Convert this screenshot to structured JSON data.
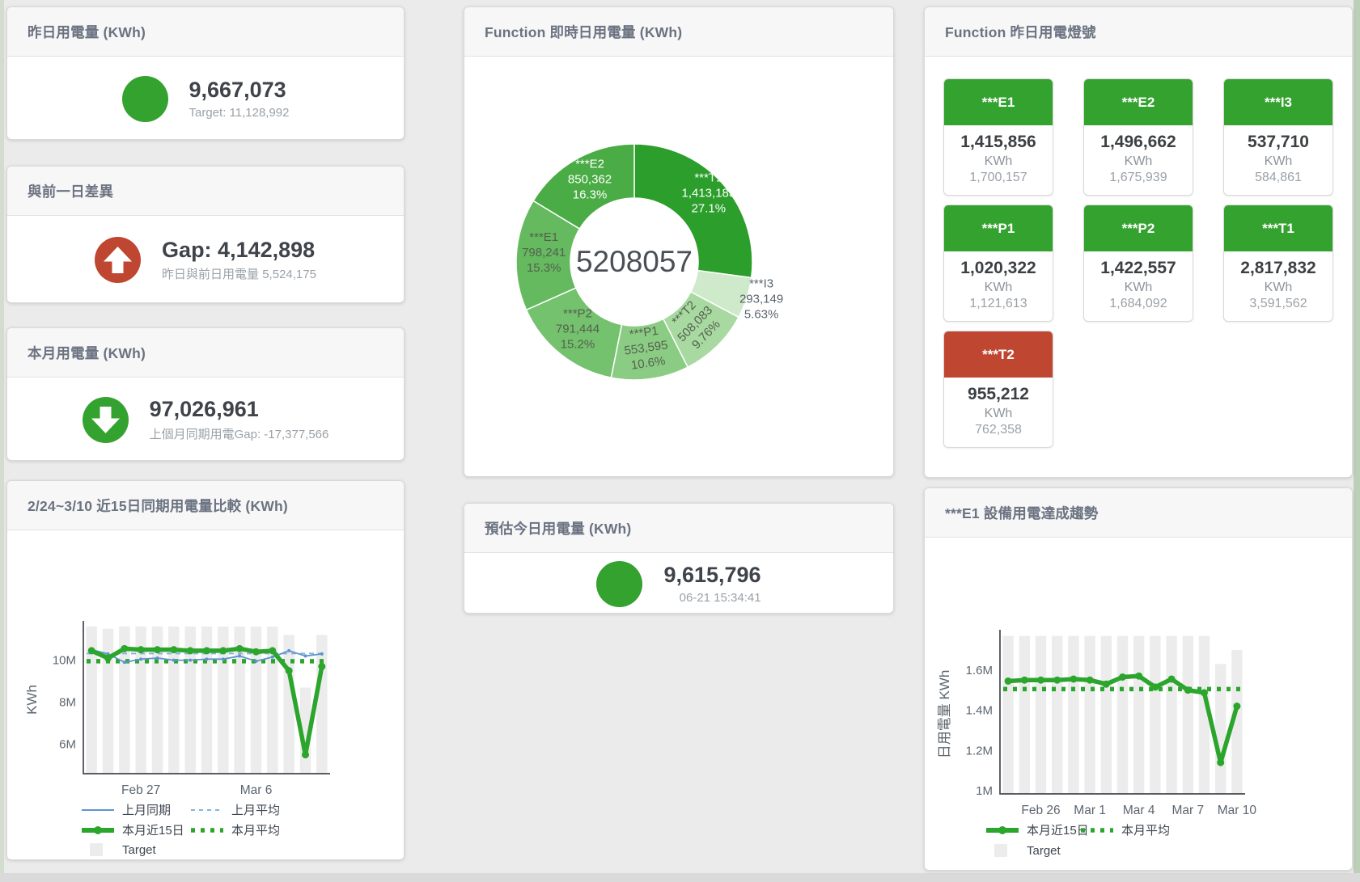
{
  "colors": {
    "green": "#34a22f",
    "red": "#bf4630",
    "blue": "#5e93cf",
    "blue_light": "#8ab0dd",
    "bar_gray": "#ececec",
    "value_text": "#3f434a",
    "subtitle_text": "#9aa1a8",
    "title_text": "#6b7280"
  },
  "cards": {
    "yesterday": {
      "title": "昨日用電量 (KWh)",
      "icon": "circle",
      "icon_color": "#34a22f",
      "value": "9,667,073",
      "subtitle": "Target: 11,128,992"
    },
    "day_gap": {
      "title": "與前一日差異",
      "icon": "arrow-up",
      "icon_color": "#bf4630",
      "value": "Gap: 4,142,898",
      "subtitle": "昨日與前日用電量 5,524,175"
    },
    "month": {
      "title": "本月用電量 (KWh)",
      "icon": "arrow-down",
      "icon_color": "#34a22f",
      "value": "97,026,961",
      "subtitle": "上個月同期用電Gap: -17,377,566"
    },
    "estimate": {
      "title": "預估今日用電量 (KWh)",
      "icon": "circle",
      "icon_color": "#34a22f",
      "value": "9,615,796",
      "subtitle": "06-21 15:34:41"
    },
    "compare": {
      "title": "2/24~3/10 近15日同期用電量比較 (KWh)"
    },
    "realtime_donut": {
      "title": "Function 即時日用電量 (KWh)"
    },
    "lights": {
      "title": "Function 昨日用電燈號",
      "unit": "KWh",
      "tiles": [
        {
          "id": "E1",
          "label": "***E1",
          "value": "1,415,856",
          "target": "1,700,157",
          "status": "green"
        },
        {
          "id": "E2",
          "label": "***E2",
          "value": "1,496,662",
          "target": "1,675,939",
          "status": "green"
        },
        {
          "id": "I3",
          "label": "***I3",
          "value": "537,710",
          "target": "584,861",
          "status": "green"
        },
        {
          "id": "P1",
          "label": "***P1",
          "value": "1,020,322",
          "target": "1,121,613",
          "status": "green"
        },
        {
          "id": "P2",
          "label": "***P2",
          "value": "1,422,557",
          "target": "1,684,092",
          "status": "green"
        },
        {
          "id": "T1",
          "label": "***T1",
          "value": "2,817,832",
          "target": "3,591,562",
          "status": "green"
        },
        {
          "id": "T2",
          "label": "***T2",
          "value": "955,212",
          "target": "762,358",
          "status": "red"
        }
      ]
    },
    "e1_trend": {
      "title": "***E1 設備用電達成趨勢"
    }
  },
  "chart_data": [
    {
      "id": "compare15",
      "type": "line",
      "title": "2/24~3/10 近15日同期用電量比較 (KWh)",
      "ylabel": "KWh",
      "unit": "M KWh",
      "x_count": 15,
      "ylim": [
        4.6,
        11.64
      ],
      "grid": false,
      "legend_position": "bottom",
      "yticks": [
        {
          "v": 6,
          "label": "6M"
        },
        {
          "v": 8,
          "label": "8M"
        },
        {
          "v": 10,
          "label": "10M"
        }
      ],
      "xticks": [
        {
          "i": 3,
          "label": "Feb 27"
        },
        {
          "i": 10,
          "label": "Mar 6"
        }
      ],
      "series": [
        {
          "name": "Target",
          "type": "bar",
          "color": "#ececec",
          "values": [
            11.6,
            11.5,
            11.6,
            11.6,
            11.6,
            11.6,
            11.6,
            11.6,
            11.6,
            11.6,
            11.6,
            11.6,
            11.2,
            8.7,
            11.2
          ]
        },
        {
          "name": "上月平均",
          "type": "hline",
          "color": "#8ab0dd",
          "dash": "6 5",
          "width": 2,
          "value": 10.32
        },
        {
          "name": "本月平均",
          "type": "hline",
          "color": "#2ca52c",
          "dash": "5 7",
          "width": 5.5,
          "value": 9.95
        },
        {
          "name": "上月同期",
          "type": "line",
          "color": "#5e93cf",
          "width": 1.8,
          "marker": 2,
          "values": [
            10.5,
            10.3,
            9.9,
            10.05,
            10.1,
            10.0,
            10.0,
            10.05,
            10.05,
            10.2,
            9.95,
            10.15,
            10.45,
            10.2,
            10.3
          ]
        },
        {
          "name": "本月近15日",
          "type": "line",
          "color": "#2ca52c",
          "width": 5.5,
          "marker": 4.5,
          "values": [
            10.45,
            10.1,
            10.55,
            10.5,
            10.5,
            10.5,
            10.45,
            10.45,
            10.45,
            10.55,
            10.4,
            10.45,
            9.5,
            5.5,
            9.7
          ]
        }
      ],
      "legend": [
        {
          "label": "上月同期",
          "icon": "line",
          "color": "#5e93cf",
          "col": 0,
          "row": 0
        },
        {
          "label": "上月平均",
          "icon": "dash",
          "color": "#8ab0dd",
          "col": 1,
          "row": 0
        },
        {
          "label": "本月近15日",
          "icon": "thick",
          "color": "#2ca52c",
          "col": 0,
          "row": 1
        },
        {
          "label": "本月平均",
          "icon": "dots",
          "color": "#2ca52c",
          "col": 1,
          "row": 1
        },
        {
          "label": "Target",
          "icon": "bar",
          "color": "#ececec",
          "col": 0,
          "row": 2
        }
      ]
    },
    {
      "id": "donut",
      "type": "pie",
      "title": "Function 即時日用電量 (KWh)",
      "center_total": "5208057",
      "slices": [
        {
          "name": "***T1",
          "value": 1413183,
          "display": "1,413,183",
          "pct": "27.1%",
          "color": "#2b9e2b",
          "text": "#ffffff",
          "labelR": 122
        },
        {
          "name": "***I3",
          "value": 293149,
          "display": "293,149",
          "pct": "5.63%",
          "color": "#cfeaca",
          "text": "#5a646e",
          "outside": true
        },
        {
          "name": "***T2",
          "value": 508083,
          "display": "508,083",
          "pct": "9.76%",
          "color": "#a7d9a0",
          "text": "#55604f",
          "rotate": -46
        },
        {
          "name": "***P1",
          "value": 553595,
          "display": "553,595",
          "pct": "10.6%",
          "color": "#8bcc84",
          "text": "#55604f",
          "rotate": -8
        },
        {
          "name": "***P2",
          "value": 791444,
          "display": "791,444",
          "pct": "15.2%",
          "color": "#74c16e",
          "text": "#55604f"
        },
        {
          "name": "***E1",
          "value": 798241,
          "display": "798,241",
          "pct": "15.3%",
          "color": "#65b95f",
          "text": "#55604f"
        },
        {
          "name": "***E2",
          "value": 850362,
          "display": "850,362",
          "pct": "16.3%",
          "color": "#4aac45",
          "text": "#ffffff"
        }
      ]
    },
    {
      "id": "e1trend",
      "type": "line",
      "title": "***E1 設備用電達成趨勢",
      "ylabel": "日用電量 KWh",
      "unit": "M KWh",
      "x_count": 15,
      "ylim": [
        0.984,
        1.776
      ],
      "grid": false,
      "legend_position": "bottom",
      "yticks": [
        {
          "v": 1,
          "label": "1M"
        },
        {
          "v": 1.2,
          "label": "1.2M"
        },
        {
          "v": 1.4,
          "label": "1.4M"
        },
        {
          "v": 1.6,
          "label": "1.6M"
        }
      ],
      "xticks": [
        {
          "i": 2,
          "label": "Feb 26"
        },
        {
          "i": 5,
          "label": "Mar 1"
        },
        {
          "i": 8,
          "label": "Mar 4"
        },
        {
          "i": 11,
          "label": "Mar 7"
        },
        {
          "i": 14,
          "label": "Mar 10"
        }
      ],
      "series": [
        {
          "name": "Target",
          "type": "bar",
          "color": "#ececec",
          "values": [
            1.77,
            1.77,
            1.77,
            1.77,
            1.77,
            1.77,
            1.77,
            1.77,
            1.77,
            1.77,
            1.77,
            1.77,
            1.77,
            1.63,
            1.7
          ]
        },
        {
          "name": "本月平均",
          "type": "hline",
          "color": "#2ca52c",
          "dash": "5 7",
          "width": 5.5,
          "value": 1.505
        },
        {
          "name": "本月近15日",
          "type": "line",
          "color": "#2ca52c",
          "width": 5.5,
          "marker": 4.5,
          "values": [
            1.545,
            1.55,
            1.55,
            1.55,
            1.555,
            1.55,
            1.53,
            1.565,
            1.57,
            1.515,
            1.555,
            1.5,
            1.487,
            1.14,
            1.42
          ]
        }
      ],
      "legend": [
        {
          "label": "本月近15日",
          "icon": "thick",
          "color": "#2ca52c",
          "col": 0,
          "row": 0
        },
        {
          "label": "本月平均",
          "icon": "dots",
          "color": "#2ca52c",
          "col": 1,
          "row": 0
        },
        {
          "label": "Target",
          "icon": "bar",
          "color": "#ececec",
          "col": 0,
          "row": 1
        }
      ]
    }
  ]
}
